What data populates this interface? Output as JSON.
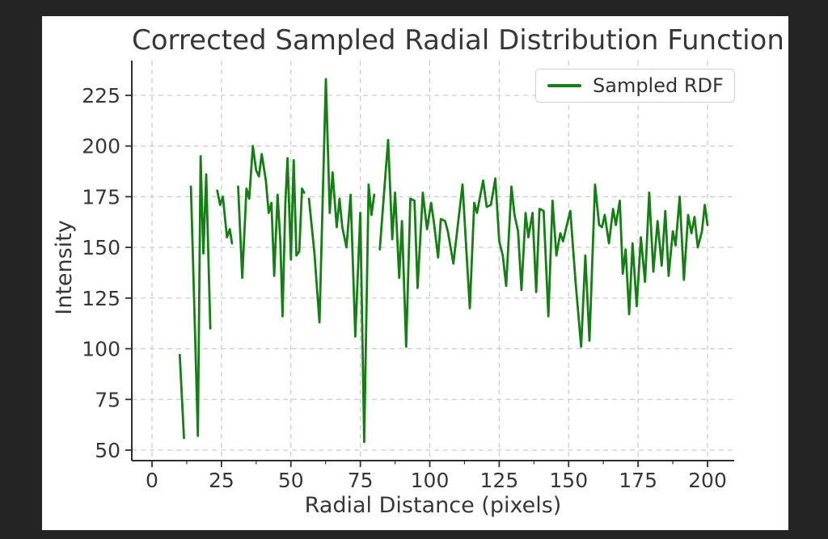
{
  "window": {
    "frame_color": "#242424",
    "figure_background": "#ffffff",
    "text_color": "#373737"
  },
  "chart_data": {
    "type": "line",
    "title": "Corrected Sampled Radial Distribution Function",
    "xlabel": "Radial Distance (pixels)",
    "ylabel": "Intensity",
    "xticks": [
      0,
      25,
      50,
      75,
      100,
      125,
      150,
      175,
      200
    ],
    "yticks": [
      50,
      75,
      100,
      125,
      150,
      175,
      200,
      225
    ],
    "xlim": [
      -7.3,
      209.6
    ],
    "ylim": [
      44.8,
      242.1
    ],
    "grid": {
      "visible": true,
      "style": "dashed",
      "color": "#cdcdcd"
    },
    "spine_color": "#2e2e2e",
    "line_color": "#157f15",
    "line_width": 2.8,
    "legend": {
      "position": "upper right",
      "entries": [
        {
          "label": "Sampled RDF",
          "color": "#157f15"
        }
      ]
    },
    "series": [
      {
        "name": "Sampled RDF",
        "points": [
          [
            10,
            97
          ],
          [
            11.5,
            56
          ],
          null,
          [
            14,
            180
          ],
          [
            15.5,
            108
          ],
          [
            16.5,
            57
          ],
          [
            17.5,
            195
          ],
          [
            18.5,
            147
          ],
          [
            19.5,
            186
          ],
          [
            21,
            110
          ],
          null,
          [
            23.5,
            178
          ],
          [
            24.5,
            171
          ],
          [
            25.5,
            175
          ],
          [
            27,
            155
          ],
          [
            28,
            159
          ],
          [
            28.8,
            152
          ],
          null,
          [
            31,
            180
          ],
          [
            32.5,
            135
          ],
          [
            34,
            179
          ],
          [
            35,
            174
          ],
          [
            36.3,
            200
          ],
          [
            37.5,
            188
          ],
          [
            38.5,
            185
          ],
          [
            39.5,
            196
          ],
          [
            41,
            183
          ],
          [
            42,
            167
          ],
          [
            43,
            172
          ],
          [
            44,
            136
          ],
          [
            45.2,
            176
          ],
          [
            46.2,
            153
          ],
          [
            47,
            116
          ],
          [
            48,
            172
          ],
          [
            48.8,
            194
          ],
          [
            50,
            144
          ],
          [
            51,
            193
          ],
          [
            52,
            146
          ],
          [
            53,
            148
          ],
          [
            54,
            179
          ],
          [
            54.8,
            177
          ],
          null,
          [
            56.5,
            174
          ],
          [
            58.5,
            147
          ],
          [
            60.3,
            113
          ],
          [
            62.6,
            233
          ],
          [
            64,
            167
          ],
          [
            65,
            187
          ],
          [
            66.5,
            160
          ],
          [
            67.5,
            174
          ],
          [
            68.5,
            160
          ],
          [
            70,
            150
          ],
          [
            71.5,
            176
          ],
          [
            73.2,
            106
          ],
          [
            75,
            167
          ],
          [
            76.4,
            54
          ],
          [
            78,
            181
          ],
          [
            79,
            166
          ],
          [
            80,
            176
          ],
          null,
          [
            82,
            149
          ],
          [
            83.5,
            176
          ],
          [
            85,
            203
          ],
          [
            86.5,
            154
          ],
          [
            87.5,
            177
          ],
          [
            89,
            135
          ],
          [
            90,
            163
          ],
          [
            91.5,
            101
          ],
          [
            93,
            174
          ],
          [
            94.5,
            173
          ],
          [
            95.6,
            130
          ],
          [
            97.5,
            177
          ],
          [
            99,
            159
          ],
          [
            100.5,
            172
          ],
          [
            101.5,
            162
          ],
          [
            103,
            145
          ],
          [
            104,
            164
          ],
          [
            105.5,
            163
          ],
          [
            106.5,
            158
          ],
          [
            108.5,
            142
          ],
          [
            110,
            160
          ],
          [
            111.8,
            181
          ],
          [
            114.4,
            120
          ],
          [
            116,
            172
          ],
          [
            117,
            167
          ],
          [
            119.2,
            183
          ],
          [
            120.5,
            170
          ],
          [
            122,
            171
          ],
          [
            123.6,
            184
          ],
          [
            125,
            153
          ],
          [
            126.3,
            146
          ],
          [
            127.5,
            131
          ],
          [
            129.4,
            180
          ],
          [
            130.5,
            166
          ],
          [
            131.8,
            158
          ],
          [
            133,
            129
          ],
          [
            134.5,
            167
          ],
          [
            135.5,
            155
          ],
          [
            137,
            167
          ],
          [
            138.3,
            128
          ],
          [
            139.5,
            169
          ],
          [
            141,
            168
          ],
          [
            142.7,
            116
          ],
          [
            144.2,
            173
          ],
          [
            145.6,
            146
          ],
          [
            147,
            157
          ],
          [
            148,
            153
          ],
          [
            149,
            159
          ],
          [
            150.6,
            168
          ],
          [
            152.5,
            133
          ],
          [
            154.5,
            101
          ],
          [
            156,
            146
          ],
          [
            157.5,
            104
          ],
          [
            159.5,
            181
          ],
          [
            161,
            161
          ],
          [
            162,
            160
          ],
          [
            163,
            166
          ],
          [
            164.5,
            152
          ],
          [
            166,
            169
          ],
          [
            167,
            161
          ],
          [
            168.4,
            173
          ],
          [
            169.5,
            137
          ],
          [
            170.5,
            149
          ],
          [
            171.8,
            117
          ],
          [
            173,
            152
          ],
          [
            174.5,
            121
          ],
          [
            176,
            155
          ],
          [
            177.5,
            133
          ],
          [
            179,
            177
          ],
          [
            180.5,
            138
          ],
          [
            182,
            163
          ],
          [
            183.5,
            141
          ],
          [
            184.8,
            168
          ],
          [
            186,
            136
          ],
          [
            187.5,
            158
          ],
          [
            188.5,
            151
          ],
          [
            190,
            175
          ],
          [
            191.5,
            134
          ],
          [
            193,
            166
          ],
          [
            194.2,
            157
          ],
          [
            195.3,
            165
          ],
          [
            196.5,
            150
          ],
          [
            198,
            158
          ],
          [
            199,
            171
          ],
          [
            200,
            161
          ]
        ]
      }
    ]
  }
}
